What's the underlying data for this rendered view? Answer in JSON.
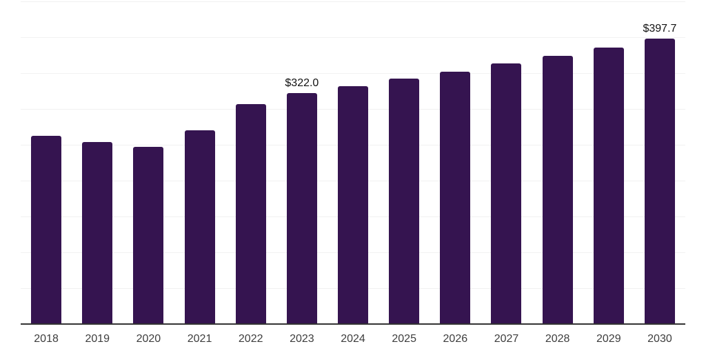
{
  "chart": {
    "colors": {
      "background": "#ffffff",
      "bar": "#351450",
      "gridline": "#f1f1f1",
      "axis": "#333333",
      "data_label": "#111111",
      "tick_label": "#3d3d3d"
    }
  },
  "chart_data": {
    "type": "bar",
    "title": "",
    "xlabel": "",
    "ylabel": "",
    "categories": [
      "2018",
      "2019",
      "2020",
      "2021",
      "2022",
      "2023",
      "2024",
      "2025",
      "2026",
      "2027",
      "2028",
      "2029",
      "2030"
    ],
    "values": [
      262.4,
      254.2,
      247.1,
      270.5,
      306.6,
      322.0,
      331.9,
      342.0,
      352.4,
      363.2,
      374.3,
      385.8,
      397.7
    ],
    "data_labels": [
      {
        "category": "2023",
        "text": "$322.0"
      },
      {
        "category": "2030",
        "text": "$397.7"
      }
    ],
    "ylim": [
      0,
      450
    ],
    "grid_step": 50,
    "grid": "horizontal-only",
    "y_axis_tick_labels": "hidden",
    "legend": "none"
  }
}
